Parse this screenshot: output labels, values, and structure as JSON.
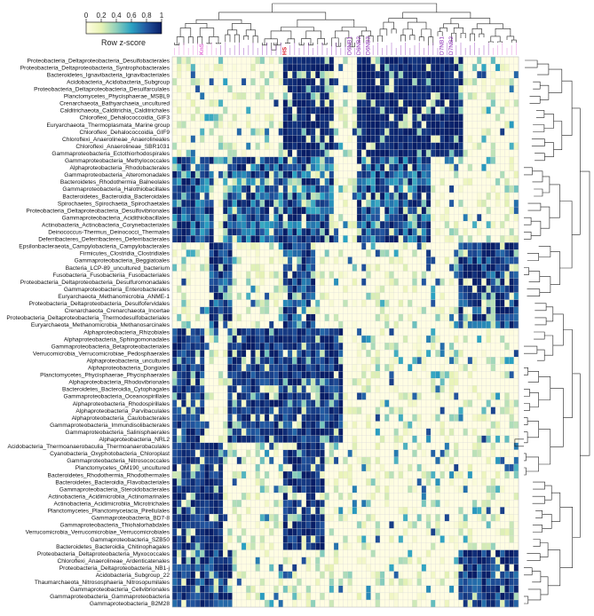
{
  "chart_data": {
    "type": "heatmap",
    "title": "",
    "color_key": {
      "label": "Row z-score",
      "ticks": [
        "0",
        "0.2",
        "0.4",
        "0.6",
        "0.8",
        "1"
      ],
      "stops": [
        "#fffde3",
        "#e8f3b5",
        "#8fd0bb",
        "#2aa2c2",
        "#2356a0",
        "#081d66"
      ]
    },
    "column_label_colors": {
      "pink": "#e26fd6",
      "red": "#d81b2a",
      "purple": "#8a2bb5"
    },
    "visible_column_labels": [
      "KnS",
      "HS",
      "D6NB1",
      "D6NB2",
      "D6NB3",
      "D7NB1",
      "D7NB2"
    ],
    "num_columns": 75,
    "rows": [
      "Proteobacteria_Deltaproteobacteria_Desulfobacterales",
      "Proteobacteria_Deltaproteobacteria_Syntrophobacterales",
      "Bacteroidetes_Ignavibacteria_Ignavibacteriales",
      "Acidobacteria_Acidobacteria_Subgroup",
      "Proteobacteria_Deltaproteobacteria_Desulfarculales",
      "Planctomycetes_Phycisphaerae_MSBL9",
      "Crenarchaeota_Bathyarchaeia_uncultured",
      "Calditrichaeota_Calditrichia_Calditrichales",
      "Chloroflexi_Dehalococcoidia_GIF3",
      "Euryarchaeota_Thermoplasmata_Marine group",
      "Chloroflexi_Dehalococcoidia_GIF9",
      "Chloroflexi_Anaerolineae_Anaerolineales",
      "Chloroflexi_Anaerolineae_SBR1031",
      "Gammaproteobacteria_Ectothiorhodospirales",
      "Gammaproteobacteria_Methylococcales",
      "Alphaproteobacteria_Rhodobacterales",
      "Gammaproteobacteria_Alteromonadales",
      "Bacteroidetes_Rhodothermia_Balneolales",
      "Gammaproteobacteria_Halothiobacillales",
      "Bacteroidetes_Bacteroidia_Bacteroidales",
      "Spirochaetes_Spirochaetia_Spirochaetales",
      "Proteobacteria_Deltaproteobacteria_Desulfovibrionales",
      "Gammaproteobacteria_Acidithiobacillales",
      "Actinobacteria_Actinobacteria_Corynebacteriales",
      "Deinococcus-Thermus_Deinococci_Thermales",
      "Deferribacteres_Deferribacteres_Deferribacterales",
      "Epsilonbacteraeota_Campylobacteria_Campylobacterales",
      "Firmicutes_Clostridia_Clostridiales",
      "Gammaproteobacteria_Beggiatoales",
      "Bacteria_LCP-89_uncultured_bacterium",
      "Fusobacteria_Fusobacteriia_Fusobacteriales",
      "Proteobacteria_Deltaproteobacteria_Desulfuromonadales",
      "Gammaproteobacteria_Enterobacterales",
      "Euryarchaeota_Methanomicrobia_ANME-1",
      "Proteobacteria_Deltaproteobacteria_Desulfofervidales",
      "Crenarchaeota_Crenarchaeota_Incertae",
      "Proteobacteria_Deltaproteobacteria_Thermodesulfobacteriales",
      "Euryarchaeota_Methanomicrobia_Methanosarcinales",
      "Alphaproteobacteria_Rhizobiales",
      "Alphaproteobacteria_Sphingomonadales",
      "Gammaproteobacteria_Betaproteobacteriales",
      "Verrucomicrobia_Verrucomicrobiae_Pedosphaerales",
      "Alphaproteobacteria_uncultured",
      "Alphaproteobacteria_Dongiales",
      "Planctomycetes_Phycisphaerae_Phycisphaerales",
      "Alphaproteobacteria_Rhodovibrionales",
      "Bacteroidetes_Bacteroidia_Cytophagales",
      "Gammaproteobacteria_Oceanospirillales",
      "Alphaproteobacteria_Rhodospirillales",
      "Alphaproteobacteria_Parvibaculales",
      "Alphaproteobacteria_Caulobacterales",
      "Gammaproteobacteria_Immundisolibacterales",
      "Gammaproteobacteria_Salinisphaerales",
      "Alphaproteobacteria_NRL2",
      "Acidobacteria_Thermoanaerobaculia_Thermoanaerobaculales",
      "Cyanobacteria_Oxyphotobacteria_Chloroplast",
      "Gammaproteobacteria_Nitrosococcales",
      "Planctomycetes_OM190_uncultured",
      "Bacteroidetes_Rhodothermia_Rhodothermales",
      "Bacteroidetes_Bacteroidia_Flavobacteriales",
      "Gammaproteobacteria_Steroidobacterales",
      "Actinobacteria_Acidimicrobiia_Actinomarinales",
      "Actinobacteria_Acidimicrobiia_Microtrichales",
      "Planctomycetes_Planctomycetacia_Pirellulales",
      "Gammaproteobacteria_BD7-8",
      "Gammaproteobacteria_Thiohalorhabdales",
      "Verrucomicrobia_Verrucomicrobiae_Verrucomicrobiales",
      "Gammaproteobacteria_SZB50",
      "Bacteroidetes_Bacteroidia_Chitinophagales",
      "Proteobacteria_Deltaproteobacteria_Myxococcales",
      "Chloroflexi_Anaerolineae_Ardenticatenales",
      "Proteobacteria_Deltaproteobacteria_NB1-j",
      "Acidobacteria_Subgroup_22",
      "Thaumarchaeota_Nitrososphaeria_Nitrosopumilales",
      "Gammaproteobacteria_Cellvibrionales",
      "Gammaproteobacteria_Gammaproteobacteria",
      "Gammaproteobacteria_B2M28"
    ],
    "row_groups": [
      {
        "rows": [
          0,
          1,
          2,
          3,
          4,
          5,
          6,
          7,
          8,
          9,
          10,
          11,
          12,
          13
        ],
        "high": [
          [
            24,
            34
          ],
          [
            40,
            62
          ]
        ],
        "level": 0.9
      },
      {
        "rows": [
          14,
          15,
          16,
          17,
          18,
          19,
          20,
          21,
          22,
          23,
          24,
          25
        ],
        "high": [
          [
            0,
            8
          ],
          [
            11,
            34
          ],
          [
            40,
            55
          ]
        ],
        "level": 0.55
      },
      {
        "rows": [
          26,
          27,
          28,
          29,
          30,
          31,
          32,
          33,
          34,
          35,
          36,
          37
        ],
        "high": [
          [
            8,
            12
          ],
          [
            24,
            30
          ],
          [
            62,
            74
          ]
        ],
        "level": 0.65
      },
      {
        "rows": [
          38,
          39,
          40,
          41,
          42,
          43,
          44,
          45,
          46,
          47,
          48,
          49,
          50,
          51,
          52,
          53
        ],
        "high": [
          [
            12,
            36
          ],
          [
            0,
            6
          ]
        ],
        "level": 0.75
      },
      {
        "rows": [
          54,
          55,
          56,
          57,
          58,
          59,
          60,
          61,
          62,
          63,
          64,
          65,
          66,
          67,
          68
        ],
        "high": [
          [
            0,
            10
          ],
          [
            24,
            32
          ]
        ],
        "level": 0.8
      },
      {
        "rows": [
          69,
          70,
          71,
          72,
          73,
          74,
          75,
          76
        ],
        "high": [
          [
            0,
            12
          ],
          [
            62,
            74
          ]
        ],
        "level": 0.7
      }
    ]
  }
}
